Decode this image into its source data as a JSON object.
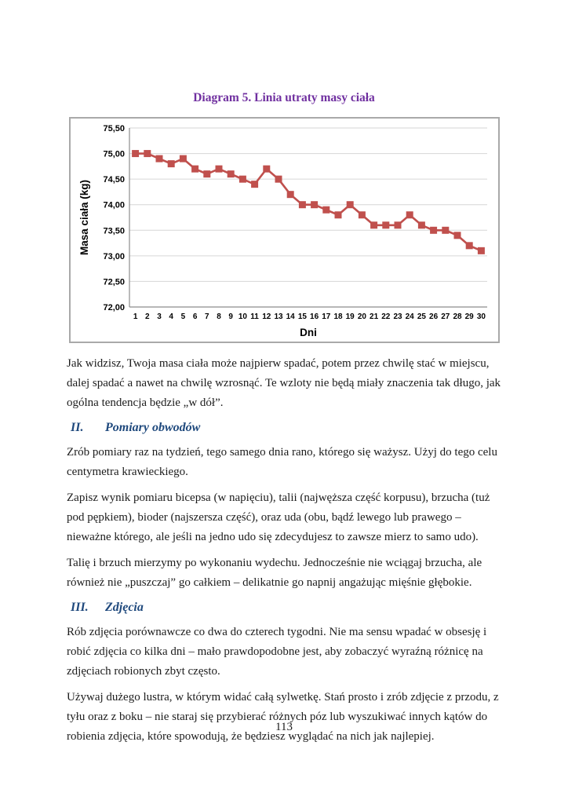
{
  "colors": {
    "title": "#7030a0",
    "heading": "#1f497d",
    "body_text": "#1c1c1c",
    "chart_line": "#c0504d",
    "gridline": "#d6d6d6",
    "axis": "#8c8c8c",
    "chart_border": "#a9a9a9"
  },
  "chart_data": {
    "type": "line",
    "title": "Diagram 5. Linia utraty masy ciała",
    "xlabel": "Dni",
    "ylabel": "Masa ciała (kg)",
    "x": [
      1,
      2,
      3,
      4,
      5,
      6,
      7,
      8,
      9,
      10,
      11,
      12,
      13,
      14,
      15,
      16,
      17,
      18,
      19,
      20,
      21,
      22,
      23,
      24,
      25,
      26,
      27,
      28,
      29,
      30
    ],
    "y": [
      75.0,
      75.0,
      74.9,
      74.8,
      74.9,
      74.7,
      74.6,
      74.7,
      74.6,
      74.5,
      74.4,
      74.7,
      74.5,
      74.2,
      74.0,
      74.0,
      73.9,
      73.8,
      74.0,
      73.8,
      73.6,
      73.6,
      73.6,
      73.8,
      73.6,
      73.5,
      73.5,
      73.4,
      73.2,
      73.1
    ],
    "ylim": [
      72.0,
      75.5
    ],
    "ytick_step": 0.5,
    "ytick_labels": [
      "75,50",
      "75,00",
      "74,50",
      "74,00",
      "73,50",
      "73,00",
      "72,50",
      "72,00"
    ],
    "grid": true,
    "legend": "none",
    "marker": "square",
    "line_color": "#c0504d"
  },
  "document": {
    "intro_paragraph": "Jak widzisz, Twoja masa ciała może najpierw spadać, potem przez chwilę stać w miejscu, dalej spadać a nawet na chwilę wzrosnąć. Te wzloty nie będą miały znaczenia tak długo, jak ogólna tendencja będzie „w dół”.",
    "sections": [
      {
        "number": "II.",
        "title": "Pomiary obwodów",
        "paragraphs": [
          "Zrób pomiary raz na tydzień, tego samego dnia rano, którego się ważysz. Użyj do tego celu centymetra krawieckiego.",
          "Zapisz wynik pomiaru bicepsa (w napięciu), talii (najwęższa część korpusu), brzucha (tuż pod pępkiem), bioder (najszersza część), oraz uda (obu, bądź lewego lub prawego – nieważne którego, ale jeśli na jedno udo się zdecydujesz to zawsze mierz to samo udo).",
          "Talię i brzuch mierzymy po wykonaniu wydechu. Jednocześnie nie wciągaj brzucha, ale również nie „puszczaj” go całkiem – delikatnie go napnij angażując mięśnie głębokie."
        ]
      },
      {
        "number": "III.",
        "title": "Zdjęcia",
        "paragraphs": [
          "Rób zdjęcia porównawcze co dwa do czterech tygodni. Nie ma sensu wpadać w obsesję i robić zdjęcia co kilka dni – mało prawdopodobne jest, aby zobaczyć wyraźną różnicę na zdjęciach robionych zbyt często.",
          "Używaj dużego lustra, w którym widać całą sylwetkę. Stań prosto i zrób zdjęcie z przodu, z tyłu oraz z boku – nie staraj się przybierać różnych póz lub wyszukiwać innych kątów do robienia zdjęcia, które spowodują, że będziesz wyglądać na nich jak najlepiej."
        ]
      }
    ],
    "page_number": "113"
  }
}
